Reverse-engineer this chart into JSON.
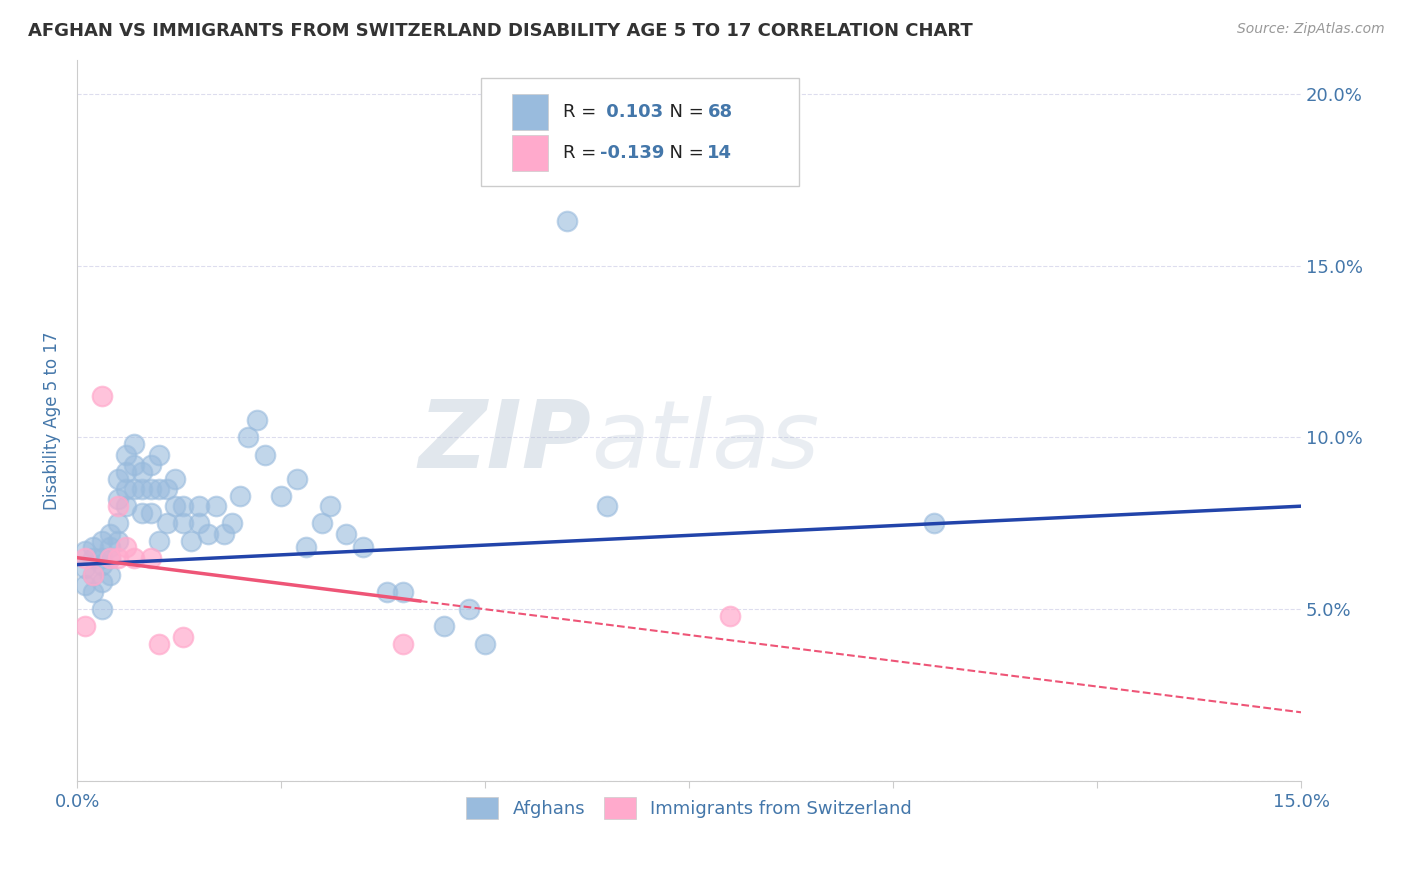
{
  "title": "AFGHAN VS IMMIGRANTS FROM SWITZERLAND DISABILITY AGE 5 TO 17 CORRELATION CHART",
  "source": "Source: ZipAtlas.com",
  "ylabel": "Disability Age 5 to 17",
  "xlim": [
    0.0,
    0.15
  ],
  "ylim": [
    0.0,
    0.21
  ],
  "r_afghan": 0.103,
  "n_afghan": 68,
  "r_swiss": -0.139,
  "n_swiss": 14,
  "color_afghan": "#99BBDD",
  "color_swiss": "#FFAACC",
  "color_afghan_line": "#2244AA",
  "color_swiss_line": "#EE5577",
  "background_color": "#FFFFFF",
  "grid_color": "#DDDDEE",
  "title_color": "#333333",
  "tick_color": "#4477AA",
  "legend_text_color": "#222222",
  "afghans_scatter_x": [
    0.001,
    0.001,
    0.001,
    0.002,
    0.002,
    0.002,
    0.002,
    0.003,
    0.003,
    0.003,
    0.003,
    0.003,
    0.004,
    0.004,
    0.004,
    0.004,
    0.005,
    0.005,
    0.005,
    0.005,
    0.006,
    0.006,
    0.006,
    0.006,
    0.007,
    0.007,
    0.007,
    0.008,
    0.008,
    0.008,
    0.009,
    0.009,
    0.009,
    0.01,
    0.01,
    0.01,
    0.011,
    0.011,
    0.012,
    0.012,
    0.013,
    0.013,
    0.014,
    0.015,
    0.015,
    0.016,
    0.017,
    0.018,
    0.019,
    0.02,
    0.021,
    0.022,
    0.023,
    0.025,
    0.027,
    0.028,
    0.03,
    0.031,
    0.033,
    0.035,
    0.038,
    0.04,
    0.045,
    0.048,
    0.05,
    0.06,
    0.065,
    0.105
  ],
  "afghans_scatter_y": [
    0.067,
    0.062,
    0.057,
    0.068,
    0.065,
    0.06,
    0.055,
    0.07,
    0.065,
    0.063,
    0.058,
    0.05,
    0.072,
    0.068,
    0.065,
    0.06,
    0.088,
    0.082,
    0.075,
    0.07,
    0.095,
    0.09,
    0.085,
    0.08,
    0.098,
    0.092,
    0.085,
    0.09,
    0.085,
    0.078,
    0.092,
    0.085,
    0.078,
    0.095,
    0.085,
    0.07,
    0.085,
    0.075,
    0.088,
    0.08,
    0.08,
    0.075,
    0.07,
    0.08,
    0.075,
    0.072,
    0.08,
    0.072,
    0.075,
    0.083,
    0.1,
    0.105,
    0.095,
    0.083,
    0.088,
    0.068,
    0.075,
    0.08,
    0.072,
    0.068,
    0.055,
    0.055,
    0.045,
    0.05,
    0.04,
    0.163,
    0.08,
    0.075
  ],
  "swiss_scatter_x": [
    0.001,
    0.001,
    0.002,
    0.003,
    0.004,
    0.005,
    0.005,
    0.006,
    0.007,
    0.009,
    0.01,
    0.013,
    0.04,
    0.08
  ],
  "swiss_scatter_y": [
    0.065,
    0.045,
    0.06,
    0.112,
    0.065,
    0.065,
    0.08,
    0.068,
    0.065,
    0.065,
    0.04,
    0.042,
    0.04,
    0.048
  ],
  "afghan_line_y_start": 0.063,
  "afghan_line_y_end": 0.08,
  "swiss_line_y_start": 0.065,
  "swiss_line_y_solid_end_x": 0.042,
  "swiss_line_y_end": 0.02,
  "watermark_zip": "ZIP",
  "watermark_atlas": "atlas"
}
